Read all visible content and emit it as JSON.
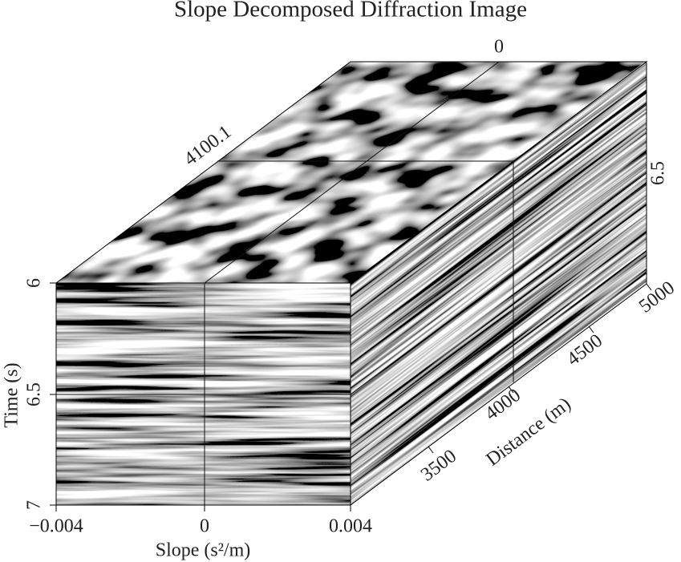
{
  "title": "Slope Decomposed Diffraction Image",
  "front_face": {
    "x_axis": {
      "label": "Slope (s²/m)",
      "ticks": [
        "−0.004",
        "0",
        "0.004"
      ]
    },
    "y_axis": {
      "label": "Time (s)",
      "ticks": [
        "6",
        "6.5",
        "7"
      ]
    }
  },
  "side_face": {
    "z_axis": {
      "label": "Distance (m)",
      "ticks": [
        "3500",
        "4000",
        "4500",
        "5000"
      ]
    }
  },
  "slice_labels": {
    "top_slope": "0",
    "top_distance": "4100.1",
    "side_time": "6.5"
  }
}
